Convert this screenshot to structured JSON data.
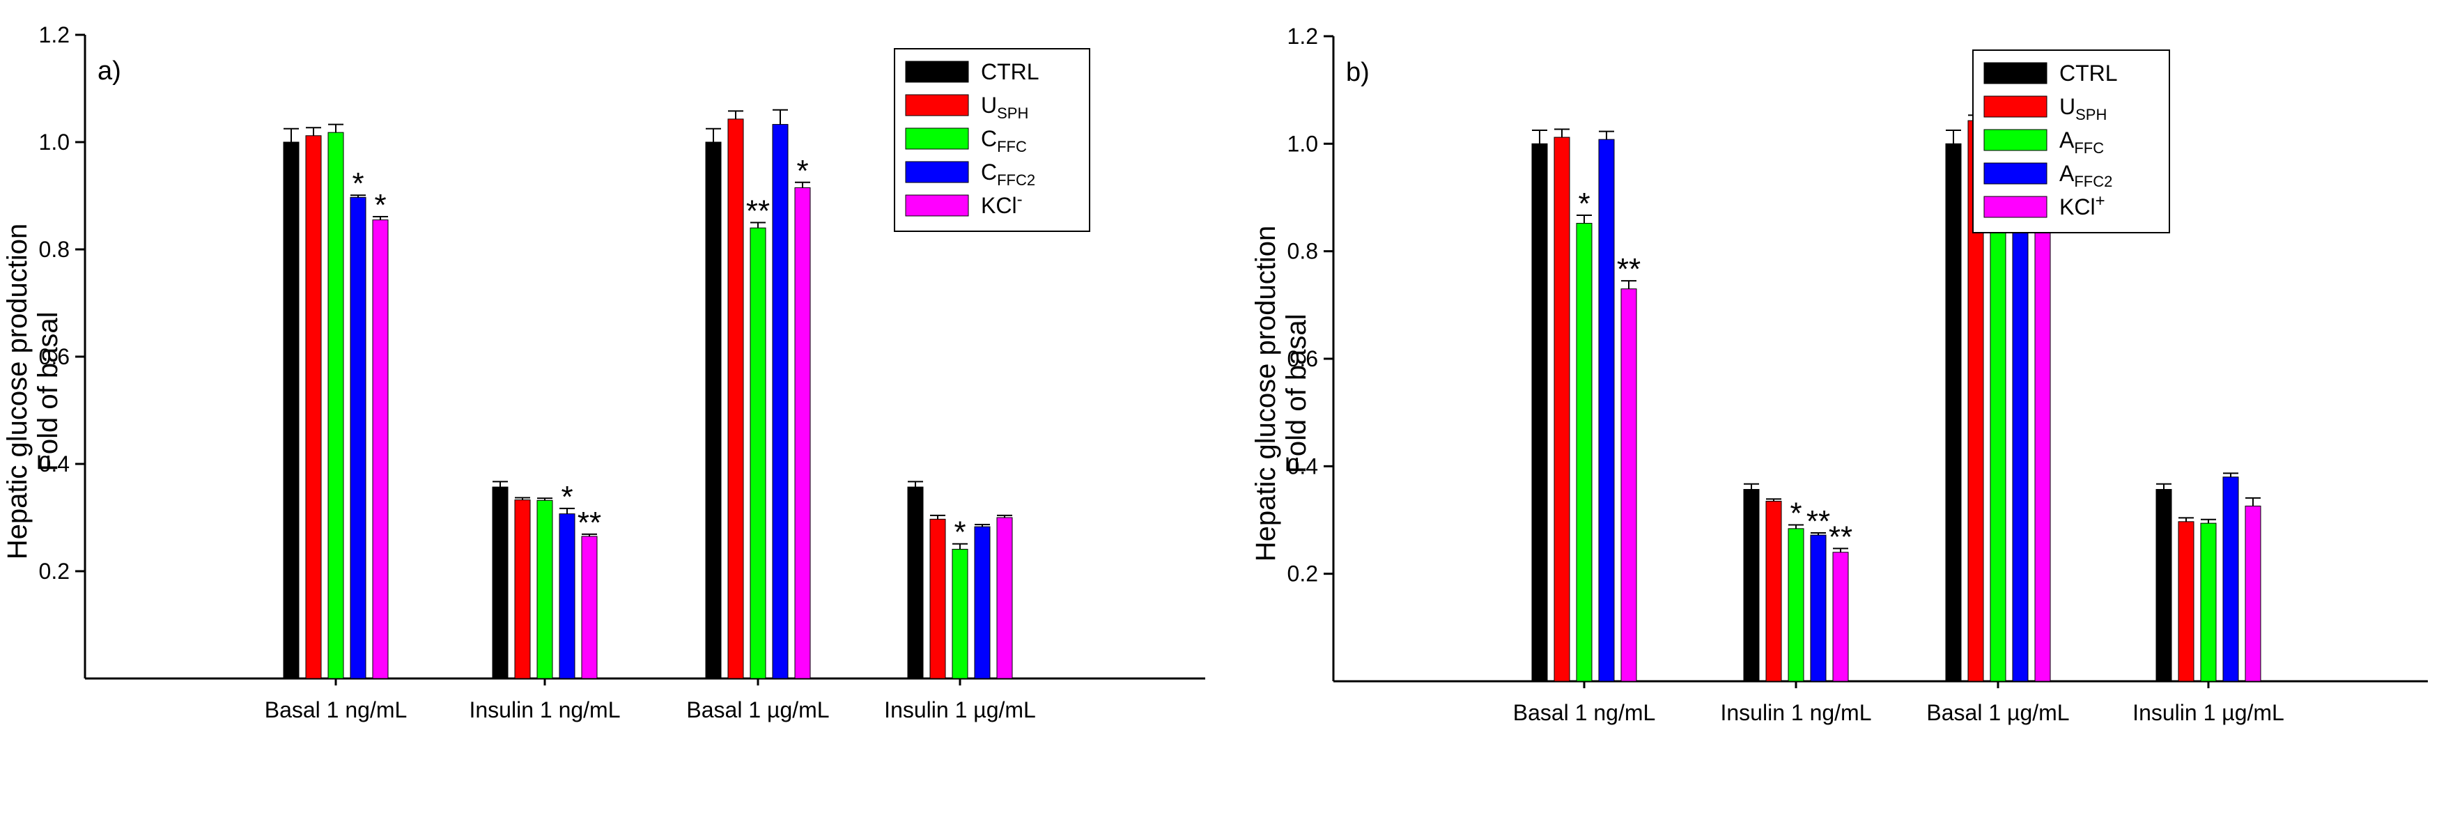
{
  "chart_data": [
    {
      "type": "bar",
      "panel_label": "a)",
      "ylabel_line1": "Hepatic glucose production",
      "ylabel_line2": "Fold of basal",
      "ylim": [
        0,
        1.2
      ],
      "yticks": [
        "0.2",
        "0.4",
        "0.6",
        "0.8",
        "1.0",
        "1.2"
      ],
      "categories": [
        "Basal 1 ng/mL",
        "Insulin 1 ng/mL",
        "Basal 1 µg/mL",
        "Insulin 1 µg/mL"
      ],
      "legend_position": "top-right",
      "series": [
        {
          "name": "CTRL",
          "label_main": "CTRL",
          "label_sub": "",
          "label_sup": "",
          "color": "#000000",
          "values": [
            1.0,
            0.357,
            1.0,
            0.357
          ],
          "errors": [
            0.025,
            0.01,
            0.025,
            0.01
          ],
          "sig": [
            "",
            "",
            "",
            ""
          ]
        },
        {
          "name": "USPH",
          "label_main": "U",
          "label_sub": "SPH",
          "label_sup": "",
          "color": "#ff0000",
          "values": [
            1.012,
            0.333,
            1.043,
            0.297
          ],
          "errors": [
            0.015,
            0.004,
            0.015,
            0.007
          ],
          "sig": [
            "",
            "",
            "",
            ""
          ]
        },
        {
          "name": "CFFC",
          "label_main": "C",
          "label_sub": "FFC",
          "label_sup": "",
          "color": "#00ff00",
          "values": [
            1.018,
            0.332,
            0.84,
            0.241
          ],
          "errors": [
            0.015,
            0.004,
            0.01,
            0.01
          ],
          "sig": [
            "",
            "",
            "**",
            "*"
          ]
        },
        {
          "name": "CFFC2",
          "label_main": "C",
          "label_sub": "FFC2",
          "label_sup": "",
          "color": "#0000ff",
          "values": [
            0.897,
            0.307,
            1.033,
            0.283
          ],
          "errors": [
            0.004,
            0.01,
            0.027,
            0.004
          ],
          "sig": [
            "*",
            "*",
            "",
            ""
          ]
        },
        {
          "name": "KCl-",
          "label_main": "KCl",
          "label_sub": "",
          "label_sup": "-",
          "color": "#ff00ff",
          "values": [
            0.855,
            0.265,
            0.915,
            0.3
          ],
          "errors": [
            0.006,
            0.004,
            0.01,
            0.004
          ],
          "sig": [
            "*",
            "**",
            "*",
            ""
          ]
        }
      ]
    },
    {
      "type": "bar",
      "panel_label": "b)",
      "ylabel_line1": "Hepatic glucose production",
      "ylabel_line2": "Fold of basal",
      "ylim": [
        0,
        1.2
      ],
      "yticks": [
        "0.2",
        "0.4",
        "0.6",
        "0.8",
        "1.0",
        "1.2"
      ],
      "categories": [
        "Basal 1 ng/mL",
        "Insulin 1 ng/mL",
        "Basal 1 µg/mL",
        "Insulin 1 µg/mL"
      ],
      "legend_position": "top-right",
      "series": [
        {
          "name": "CTRL",
          "label_main": "CTRL",
          "label_sub": "",
          "label_sup": "",
          "color": "#000000",
          "values": [
            1.0,
            0.357,
            1.0,
            0.357
          ],
          "errors": [
            0.025,
            0.01,
            0.025,
            0.01
          ],
          "sig": [
            "",
            "",
            "",
            ""
          ]
        },
        {
          "name": "USPH",
          "label_main": "U",
          "label_sub": "SPH",
          "label_sup": "",
          "color": "#ff0000",
          "values": [
            1.012,
            0.335,
            1.043,
            0.297
          ],
          "errors": [
            0.015,
            0.004,
            0.01,
            0.007
          ],
          "sig": [
            "",
            "",
            "",
            ""
          ]
        },
        {
          "name": "AFFC",
          "label_main": "A",
          "label_sub": "FFC",
          "label_sup": "",
          "color": "#00ff00",
          "values": [
            0.852,
            0.284,
            0.927,
            0.294
          ],
          "errors": [
            0.015,
            0.007,
            0.01,
            0.007
          ],
          "sig": [
            "*",
            "*",
            "",
            ""
          ]
        },
        {
          "name": "AFFC2",
          "label_main": "A",
          "label_sub": "FFC2",
          "label_sup": "",
          "color": "#0000ff",
          "values": [
            1.008,
            0.272,
            0.94,
            0.38
          ],
          "errors": [
            0.015,
            0.004,
            0.01,
            0.007
          ],
          "sig": [
            "",
            "**",
            "",
            ""
          ]
        },
        {
          "name": "KCl+",
          "label_main": "KCl",
          "label_sub": "",
          "label_sup": "+",
          "color": "#ff00ff",
          "values": [
            0.73,
            0.24,
            1.027,
            0.326
          ],
          "errors": [
            0.015,
            0.007,
            0.02,
            0.015
          ],
          "sig": [
            "**",
            "**",
            "",
            ""
          ]
        }
      ]
    }
  ]
}
